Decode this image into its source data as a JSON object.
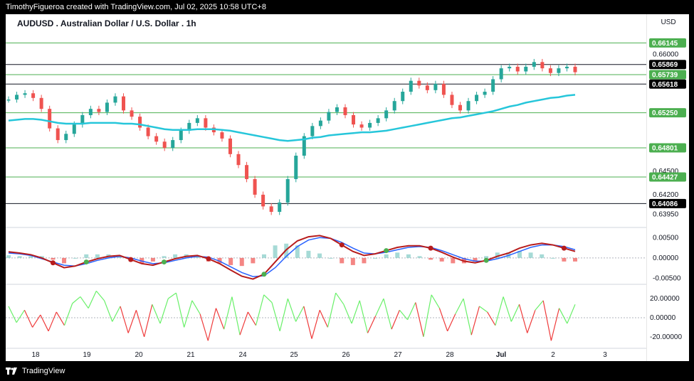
{
  "header": {
    "attribution": "TimothyFigueroa created with TradingView.com, Jul 02, 2025 10:58 UTC+8"
  },
  "footer": {
    "brand": "TradingView"
  },
  "chart_data": {
    "type": "line",
    "title": "AUDUSD . Australian Dollar / U.S. Dollar . 1h",
    "currency": "USD",
    "price_ticks": [
      "0.66000",
      "0.65250",
      "0.64500",
      "0.64200",
      "0.63950"
    ],
    "horizontal_levels": [
      {
        "price": 0.66145,
        "label": "0.66145",
        "color": "#4caf50"
      },
      {
        "price": 0.65869,
        "label": "0.65869",
        "color": "#000000"
      },
      {
        "price": 0.65739,
        "label": "0.65739",
        "color": "#4caf50"
      },
      {
        "price": 0.65618,
        "label": "0.65618",
        "color": "#000000"
      },
      {
        "price": 0.6525,
        "label": "0.65250",
        "color": "#4caf50"
      },
      {
        "price": 0.64801,
        "label": "0.64801",
        "color": "#4caf50"
      },
      {
        "price": 0.64427,
        "label": "0.64427",
        "color": "#4caf50"
      },
      {
        "price": 0.64086,
        "label": "0.64086",
        "color": "#000000"
      }
    ],
    "x_ticks": [
      "18",
      "19",
      "20",
      "21",
      "24",
      "25",
      "26",
      "27",
      "28",
      "Jul",
      "2",
      "3"
    ],
    "price_series": {
      "name": "",
      "values": [
        0.6542,
        0.6548,
        0.655,
        0.6544,
        0.653,
        0.6505,
        0.649,
        0.6498,
        0.651,
        0.6522,
        0.653,
        0.6526,
        0.6538,
        0.6546,
        0.6528,
        0.652,
        0.6506,
        0.6495,
        0.6488,
        0.648,
        0.649,
        0.6502,
        0.6512,
        0.6518,
        0.6506,
        0.65,
        0.6492,
        0.6472,
        0.6458,
        0.644,
        0.642,
        0.6405,
        0.6398,
        0.641,
        0.644,
        0.647,
        0.6495,
        0.6508,
        0.6515,
        0.6526,
        0.6532,
        0.6522,
        0.651,
        0.6506,
        0.6512,
        0.6518,
        0.6528,
        0.654,
        0.6552,
        0.6566,
        0.656,
        0.6554,
        0.6562,
        0.6548,
        0.6535,
        0.6528,
        0.654,
        0.6548,
        0.6552,
        0.6568,
        0.6582,
        0.6584,
        0.6578,
        0.6584,
        0.659,
        0.6582,
        0.6576,
        0.6582,
        0.6584,
        0.6577
      ],
      "ema_values": [
        0.6515,
        0.6516,
        0.6517,
        0.6517,
        0.6516,
        0.6514,
        0.6512,
        0.6511,
        0.6511,
        0.6511,
        0.6512,
        0.6512,
        0.6512,
        0.6512,
        0.6511,
        0.6511,
        0.651,
        0.6508,
        0.6506,
        0.6504,
        0.6503,
        0.6503,
        0.6503,
        0.6504,
        0.6504,
        0.6504,
        0.6503,
        0.6502,
        0.65,
        0.6498,
        0.6496,
        0.6494,
        0.6492,
        0.649,
        0.6489,
        0.649,
        0.6491,
        0.6493,
        0.6494,
        0.6496,
        0.6497,
        0.6498,
        0.6499,
        0.65,
        0.65,
        0.6501,
        0.6502,
        0.6504,
        0.6506,
        0.6508,
        0.651,
        0.6512,
        0.6514,
        0.6516,
        0.6518,
        0.6519,
        0.6521,
        0.6523,
        0.6525,
        0.6527,
        0.653,
        0.6533,
        0.6535,
        0.6538,
        0.654,
        0.6542,
        0.6544,
        0.6545,
        0.6547,
        0.6548
      ]
    },
    "oscillator_ticks": [
      "0.00500",
      "0.00000",
      "-0.00500"
    ],
    "oscillator": {
      "fast": [
        0.0015,
        0.0012,
        0.0008,
        0.0,
        -0.0012,
        -0.0024,
        -0.002,
        -0.001,
        -0.0002,
        0.0004,
        0.0006,
        -0.0004,
        -0.0014,
        -0.0018,
        -0.001,
        -0.0002,
        0.0004,
        0.0006,
        -0.0002,
        -0.0014,
        -0.003,
        -0.0045,
        -0.0052,
        -0.004,
        -0.001,
        0.002,
        0.0042,
        0.0052,
        0.0055,
        0.0048,
        0.0032,
        0.0016,
        0.0006,
        0.001,
        0.0018,
        0.0026,
        0.003,
        0.003,
        0.0024,
        0.0014,
        0.0002,
        -0.0008,
        -0.0012,
        -0.0006,
        0.0004,
        0.0012,
        0.0024,
        0.0032,
        0.0036,
        0.0032,
        0.0024,
        0.0016
      ],
      "slow": [
        0.0012,
        0.001,
        0.0006,
        -0.0002,
        -0.001,
        -0.0018,
        -0.002,
        -0.0014,
        -0.0006,
        0.0,
        0.0004,
        0.0,
        -0.0008,
        -0.0014,
        -0.0012,
        -0.0006,
        0.0,
        0.0004,
        0.0002,
        -0.0008,
        -0.0022,
        -0.0036,
        -0.0046,
        -0.0044,
        -0.0024,
        0.0004,
        0.0028,
        0.0044,
        0.005,
        0.0048,
        0.0038,
        0.0024,
        0.0012,
        0.001,
        0.0014,
        0.002,
        0.0026,
        0.0028,
        0.0026,
        0.0018,
        0.0008,
        -0.0002,
        -0.0008,
        -0.0008,
        -0.0002,
        0.0006,
        0.0016,
        0.0026,
        0.0032,
        0.0032,
        0.0028,
        0.002
      ]
    },
    "momentum_ticks": [
      "20.00000",
      "0.00000",
      "-20.00000"
    ],
    "momentum_values": [
      12,
      -5,
      8,
      -10,
      3,
      -14,
      6,
      -8,
      15,
      22,
      10,
      28,
      18,
      -4,
      12,
      -16,
      8,
      -20,
      14,
      -6,
      20,
      26,
      -10,
      18,
      4,
      -24,
      10,
      -12,
      22,
      -18,
      6,
      -8,
      24,
      16,
      -14,
      20,
      -4,
      12,
      -22,
      8,
      -10,
      26,
      14,
      -6,
      18,
      -16,
      2,
      20,
      -12,
      8,
      -2,
      16,
      -20,
      24,
      10,
      -14,
      4,
      20,
      -18,
      12,
      6,
      -8,
      22,
      -4,
      14,
      -16,
      8,
      18,
      -24,
      10,
      -6,
      14
    ]
  }
}
